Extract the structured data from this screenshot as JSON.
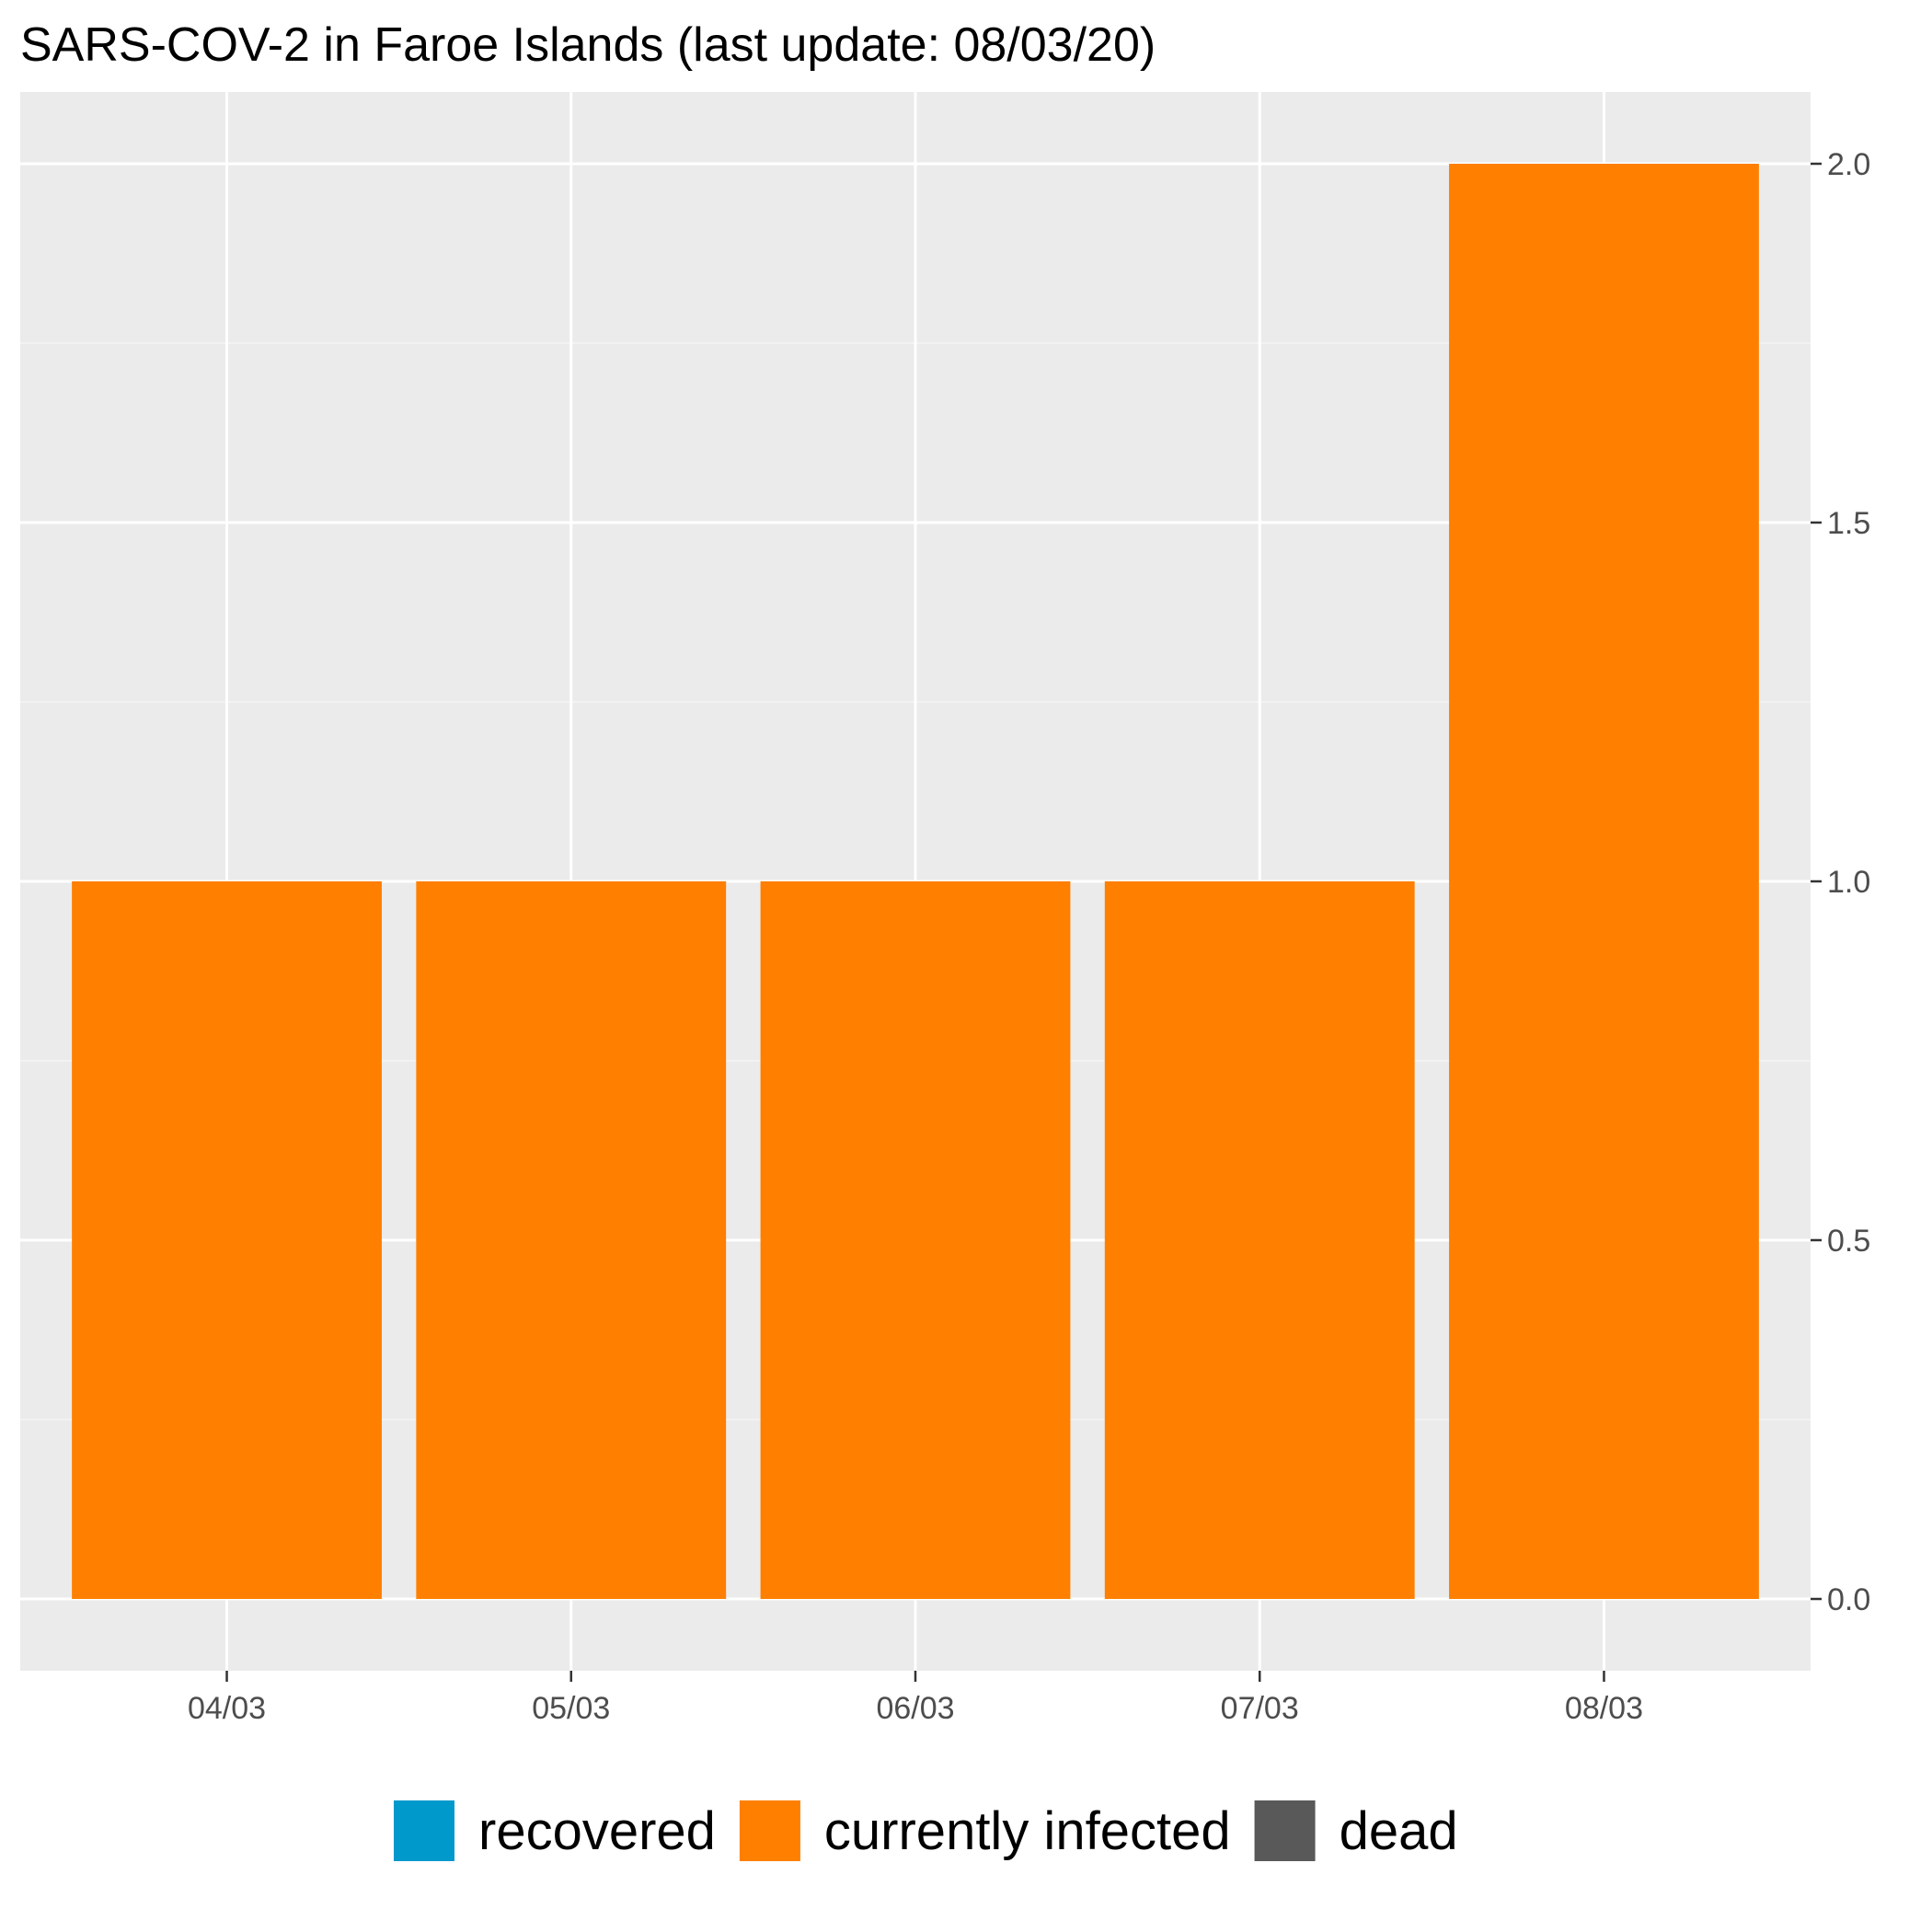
{
  "chart_data": {
    "type": "bar",
    "title": "SARS-COV-2 in Faroe Islands (last update: 08/03/20)",
    "categories": [
      "04/03",
      "05/03",
      "06/03",
      "07/03",
      "08/03"
    ],
    "series": [
      {
        "name": "recovered",
        "color": "#0099cc",
        "values": [
          0,
          0,
          0,
          0,
          0
        ]
      },
      {
        "name": "currently infected",
        "color": "#ff7f00",
        "values": [
          1,
          1,
          1,
          1,
          2
        ]
      },
      {
        "name": "dead",
        "color": "#595959",
        "values": [
          0,
          0,
          0,
          0,
          0
        ]
      }
    ],
    "stacked": true,
    "ylim": [
      -0.1,
      2.1
    ],
    "yticks": [
      0.0,
      0.5,
      1.0,
      1.5,
      2.0
    ],
    "ytick_labels": [
      "0.0",
      "0.5",
      "1.0",
      "1.5",
      "2.0"
    ],
    "y_axis_position": "right",
    "xlabel": "",
    "ylabel": "",
    "grid": true,
    "panel_background": "#ebebeb",
    "legend_position": "bottom"
  }
}
